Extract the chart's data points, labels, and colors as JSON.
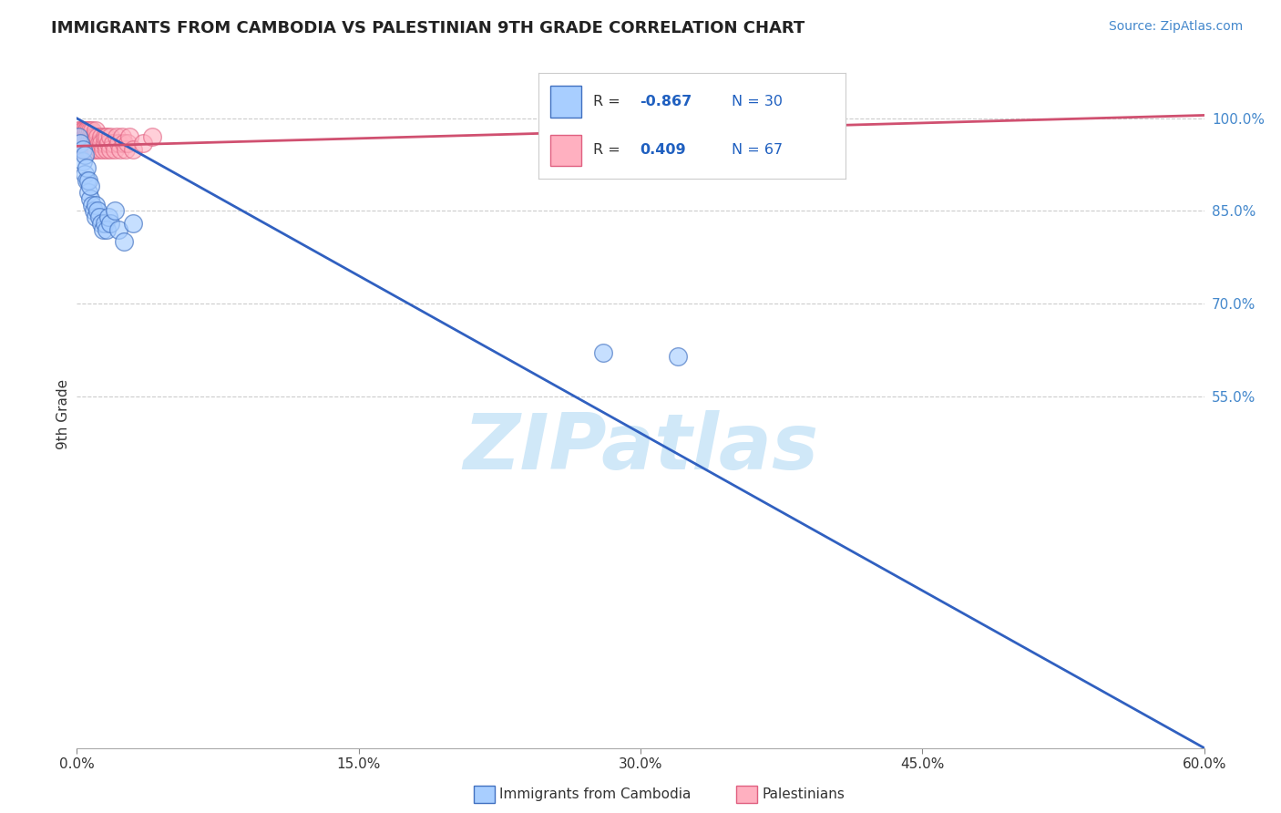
{
  "title": "IMMIGRANTS FROM CAMBODIA VS PALESTINIAN 9TH GRADE CORRELATION CHART",
  "source": "Source: ZipAtlas.com",
  "ylabel": "9th Grade",
  "xlim": [
    0.0,
    0.6
  ],
  "ylim": [
    -0.02,
    1.06
  ],
  "yticks": [
    0.55,
    0.7,
    0.85,
    1.0
  ],
  "ytick_labels": [
    "55.0%",
    "70.0%",
    "85.0%",
    "100.0%"
  ],
  "xticks": [
    0.0,
    0.15,
    0.3,
    0.45,
    0.6
  ],
  "xtick_labels": [
    "0.0%",
    "15.0%",
    "30.0%",
    "45.0%",
    "60.0%"
  ],
  "cambodia_R": -0.867,
  "cambodia_N": 30,
  "palestinian_R": 0.409,
  "palestinian_N": 67,
  "cambodia_color": "#A8CEFF",
  "palestinian_color": "#FFB0C0",
  "cambodia_edge_color": "#4070C0",
  "palestinian_edge_color": "#E06080",
  "cambodia_line_color": "#3060C0",
  "palestinian_line_color": "#D05070",
  "background_color": "#FFFFFF",
  "watermark": "ZIPatlas",
  "watermark_color": "#D0E8F8",
  "legend_R_color": "#2060C0",
  "grid_color": "#CCCCCC",
  "cambodia_line_x0": 0.0,
  "cambodia_line_y0": 1.0,
  "cambodia_line_x1": 0.6,
  "cambodia_line_y1": -0.02,
  "palestinian_line_x0": 0.0,
  "palestinian_line_y0": 0.955,
  "palestinian_line_x1": 0.6,
  "palestinian_line_y1": 1.005,
  "cambodia_x": [
    0.001,
    0.002,
    0.003,
    0.003,
    0.004,
    0.004,
    0.005,
    0.005,
    0.006,
    0.006,
    0.007,
    0.007,
    0.008,
    0.009,
    0.01,
    0.01,
    0.011,
    0.012,
    0.013,
    0.014,
    0.015,
    0.016,
    0.017,
    0.018,
    0.02,
    0.022,
    0.025,
    0.03,
    0.28,
    0.32
  ],
  "cambodia_y": [
    0.97,
    0.96,
    0.93,
    0.95,
    0.91,
    0.94,
    0.9,
    0.92,
    0.88,
    0.9,
    0.87,
    0.89,
    0.86,
    0.85,
    0.84,
    0.86,
    0.85,
    0.84,
    0.83,
    0.82,
    0.83,
    0.82,
    0.84,
    0.83,
    0.85,
    0.82,
    0.8,
    0.83,
    0.62,
    0.615
  ],
  "palestinian_x": [
    0.001,
    0.001,
    0.001,
    0.002,
    0.002,
    0.002,
    0.002,
    0.003,
    0.003,
    0.003,
    0.003,
    0.003,
    0.004,
    0.004,
    0.004,
    0.004,
    0.004,
    0.005,
    0.005,
    0.005,
    0.005,
    0.005,
    0.006,
    0.006,
    0.006,
    0.006,
    0.007,
    0.007,
    0.007,
    0.007,
    0.008,
    0.008,
    0.008,
    0.009,
    0.009,
    0.009,
    0.01,
    0.01,
    0.01,
    0.011,
    0.011,
    0.012,
    0.012,
    0.013,
    0.013,
    0.014,
    0.015,
    0.015,
    0.016,
    0.016,
    0.017,
    0.018,
    0.018,
    0.019,
    0.02,
    0.021,
    0.022,
    0.023,
    0.024,
    0.025,
    0.026,
    0.027,
    0.028,
    0.03,
    0.035,
    0.04,
    0.31
  ],
  "palestinian_y": [
    0.97,
    0.98,
    0.96,
    0.97,
    0.98,
    0.96,
    0.95,
    0.98,
    0.97,
    0.96,
    0.98,
    0.95,
    0.97,
    0.96,
    0.98,
    0.95,
    0.97,
    0.98,
    0.96,
    0.97,
    0.95,
    0.98,
    0.97,
    0.96,
    0.98,
    0.95,
    0.97,
    0.96,
    0.98,
    0.95,
    0.97,
    0.96,
    0.98,
    0.97,
    0.95,
    0.96,
    0.97,
    0.95,
    0.98,
    0.96,
    0.97,
    0.96,
    0.95,
    0.97,
    0.96,
    0.95,
    0.96,
    0.97,
    0.95,
    0.97,
    0.96,
    0.97,
    0.95,
    0.96,
    0.95,
    0.97,
    0.96,
    0.95,
    0.97,
    0.96,
    0.95,
    0.96,
    0.97,
    0.95,
    0.96,
    0.97,
    0.99
  ]
}
